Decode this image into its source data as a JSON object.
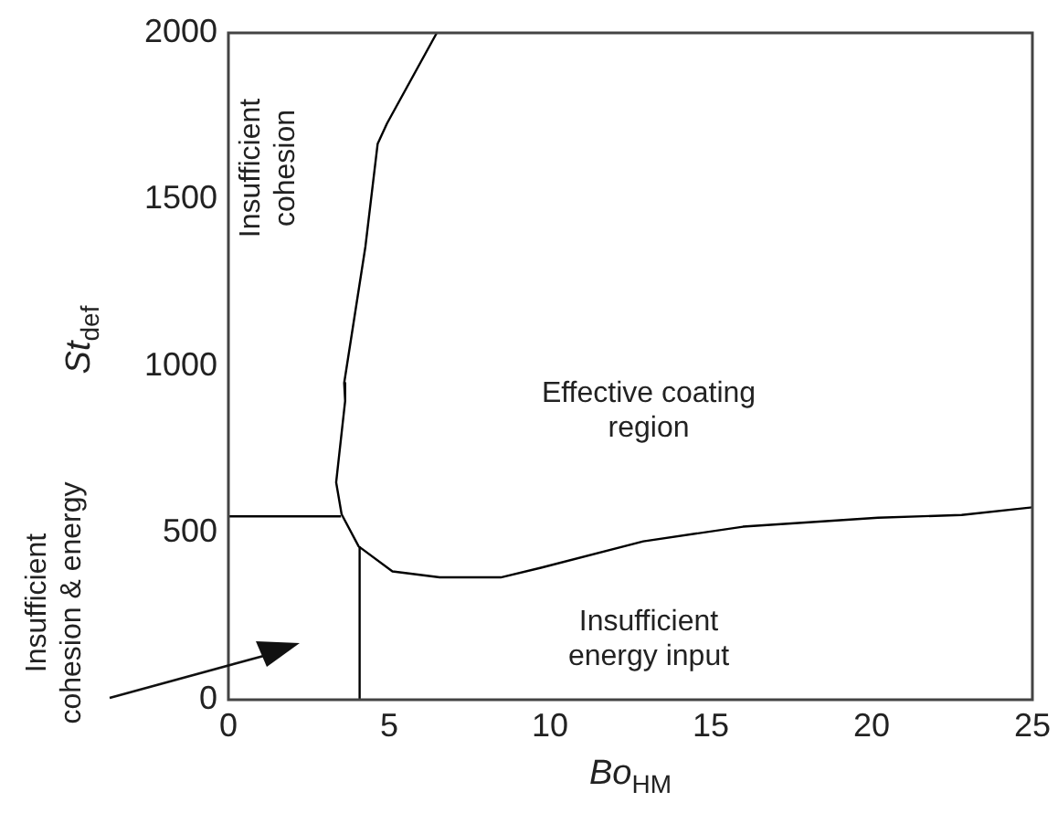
{
  "chart_data": {
    "type": "line",
    "xlabel": "Bo$_{HM}$",
    "ylabel": "St$_{def}$",
    "xlim": [
      0,
      25
    ],
    "xticks": [
      0,
      5,
      10,
      15,
      20,
      25
    ],
    "ylim": [
      0,
      2000
    ],
    "yticks": [
      0,
      500,
      1000,
      1500,
      2000
    ],
    "grid": false,
    "legend": false,
    "series": [
      {
        "color": "#000000",
        "x": [
          6.48,
          4.93,
          4.64,
          4.26,
          3.6,
          3.63,
          3.35,
          3.52,
          4.05,
          5.1,
          6.57,
          8.47,
          9.72,
          12.9,
          16.0,
          20.2,
          22.8,
          25
        ],
        "values": [
          2000,
          1728,
          1667,
          1359,
          950,
          896,
          652,
          556,
          460,
          385,
          367,
          367,
          396,
          475,
          519,
          546,
          554,
          577
        ]
      },
      {
        "color": "#000000",
        "x": [
          0,
          3.5
        ],
        "values": [
          550,
          550
        ]
      },
      {
        "color": "#000000",
        "x": [
          4.08,
          4.08
        ],
        "values": [
          0,
          460
        ]
      }
    ],
    "annotations": [
      "Insufficient\ncohesion",
      "Effective coating\nregion",
      "Insufficient\nenergy input",
      "Insufficient\ncohesion & energy"
    ]
  }
}
